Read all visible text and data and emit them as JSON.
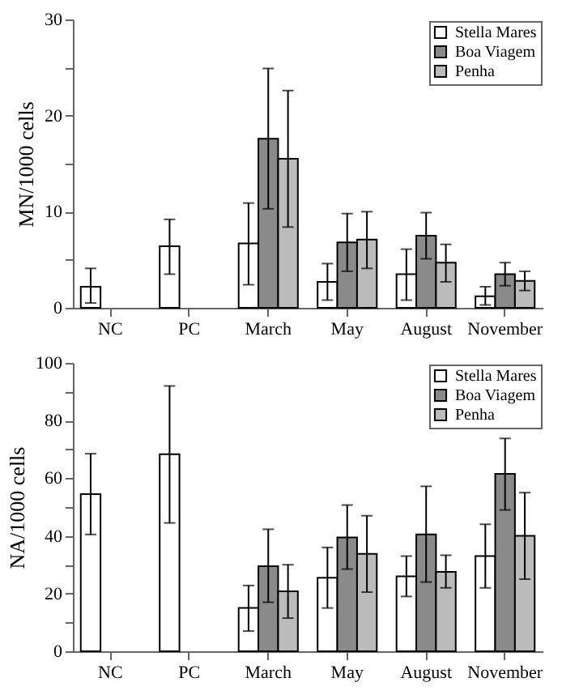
{
  "chart_data": [
    {
      "type": "bar",
      "ylabel": "MN/1000 cells",
      "categories": [
        "NC",
        "PC",
        "March",
        "May",
        "August",
        "November"
      ],
      "ylim": [
        0,
        30
      ],
      "yticks": [
        0,
        {
          "value": 5,
          "label": null
        },
        10,
        {
          "value": 15,
          "label": null
        },
        20,
        {
          "value": 25,
          "label": null
        },
        30
      ],
      "legend": "top right",
      "grid": false,
      "series": [
        {
          "name": "Stella Mares",
          "color": "#ffffff",
          "values": [
            2.2,
            6.4,
            6.7,
            2.7,
            3.5,
            1.2
          ],
          "errors": [
            [
              0.5,
              4.1
            ],
            [
              3.5,
              9.2
            ],
            [
              2.4,
              10.9
            ],
            [
              0.8,
              4.6
            ],
            [
              0.8,
              6.1
            ],
            [
              0.3,
              2.2
            ]
          ]
        },
        {
          "name": "Boa Viagem",
          "color": "#8a8a8a",
          "values": [
            null,
            null,
            17.6,
            6.8,
            7.5,
            3.5
          ],
          "errors": [
            null,
            null,
            [
              10.3,
              24.9
            ],
            [
              3.8,
              9.8
            ],
            [
              5.1,
              9.9
            ],
            [
              2.3,
              4.7
            ]
          ]
        },
        {
          "name": "Penha",
          "color": "#bbbbbb",
          "values": [
            null,
            null,
            15.5,
            7.1,
            4.7,
            2.8
          ],
          "errors": [
            null,
            null,
            [
              8.4,
              22.6
            ],
            [
              4.1,
              10.0
            ],
            [
              2.7,
              6.6
            ],
            [
              1.8,
              3.8
            ]
          ]
        }
      ]
    },
    {
      "type": "bar",
      "ylabel": "NA/1000 cells",
      "categories": [
        "NC",
        "PC",
        "March",
        "May",
        "August",
        "November"
      ],
      "ylim": [
        0,
        100
      ],
      "yticks": [
        0,
        {
          "value": 10,
          "label": null
        },
        20,
        {
          "value": 30,
          "label": null
        },
        40,
        {
          "value": 50,
          "label": null
        },
        60,
        {
          "value": 70,
          "label": null
        },
        80,
        {
          "value": 90,
          "label": null
        },
        100
      ],
      "legend": "top right",
      "grid": false,
      "series": [
        {
          "name": "Stella Mares",
          "color": "#ffffff",
          "values": [
            54.5,
            68.3,
            15,
            25.5,
            26,
            33
          ],
          "errors": [
            [
              40.5,
              68.5
            ],
            [
              44.5,
              92
            ],
            [
              7,
              22.8
            ],
            [
              15,
              36
            ],
            [
              19,
              33
            ],
            [
              22,
              44
            ]
          ]
        },
        {
          "name": "Boa Viagem",
          "color": "#8a8a8a",
          "values": [
            null,
            null,
            29.5,
            39.5,
            40.5,
            61.5
          ],
          "errors": [
            null,
            null,
            [
              17,
              42.3
            ],
            [
              28.5,
              50.7
            ],
            [
              24,
              57.2
            ],
            [
              49,
              73.8
            ]
          ]
        },
        {
          "name": "Penha",
          "color": "#bbbbbb",
          "values": [
            null,
            null,
            20.8,
            33.8,
            27.5,
            40
          ],
          "errors": [
            null,
            null,
            [
              11.5,
              30
            ],
            [
              20.5,
              47
            ],
            [
              22,
              33.3
            ],
            [
              25,
              55
            ]
          ]
        }
      ]
    }
  ]
}
